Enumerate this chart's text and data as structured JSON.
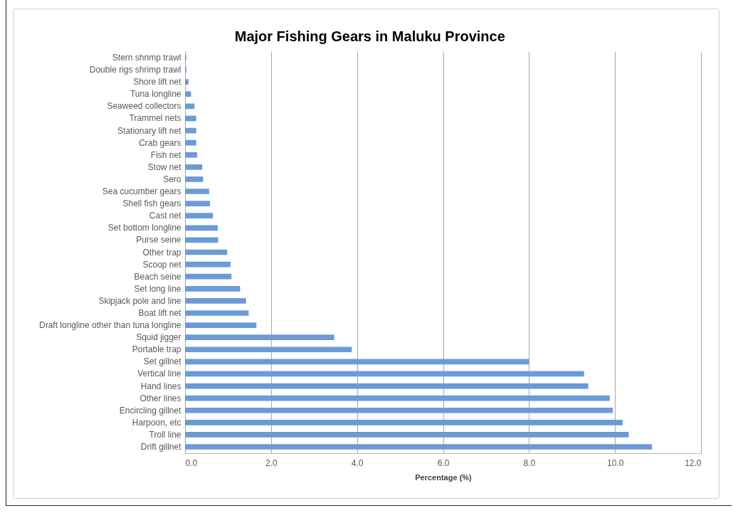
{
  "chart_data": {
    "type": "bar",
    "orientation": "horizontal",
    "title": "Major Fishing Gears in Maluku Province",
    "xlabel": "Percentage (%)",
    "categories": [
      "Stern shrimp trawl",
      "Double rigs shrimp trawl",
      "Shore lift net",
      "Tuna longline",
      "Seaweed collectors",
      "Trammel nets",
      "Stationary lift net",
      "Crab gears",
      "Fish net",
      "Stow net",
      "Sero",
      "Sea cucumber gears",
      "Shell fish gears",
      "Cast net",
      "Set bottom longline",
      "Purse seine",
      "Other trap",
      "Scoop net",
      "Beach seine",
      "Set long line",
      "Skipjack pole and line",
      "Boat lift net",
      "Draft longline other than tuna longline",
      "Squid jigger",
      "Portable trap",
      "Set gillnet",
      "Vertical line",
      "Hand lines",
      "Other lines",
      "Encircling gillnet",
      "Harpoon, etc",
      "Troll line",
      "Drift gillnet"
    ],
    "values": [
      0.03,
      0.03,
      0.08,
      0.14,
      0.22,
      0.26,
      0.26,
      0.26,
      0.28,
      0.4,
      0.42,
      0.56,
      0.58,
      0.65,
      0.76,
      0.77,
      0.98,
      1.06,
      1.08,
      1.28,
      1.42,
      1.48,
      1.66,
      3.47,
      3.88,
      8.0,
      9.28,
      9.38,
      9.88,
      9.95,
      10.18,
      10.32,
      10.86
    ],
    "color": "#6b9bd6",
    "xlim": [
      0,
      12
    ],
    "xticks": [
      {
        "value": 0,
        "label": "0.0"
      },
      {
        "value": 2,
        "label": "2.0"
      },
      {
        "value": 4,
        "label": "4.0"
      },
      {
        "value": 6,
        "label": "6.0"
      },
      {
        "value": 8,
        "label": "8.0"
      },
      {
        "value": 10,
        "label": "10.0"
      },
      {
        "value": 12,
        "label": "12.0"
      }
    ],
    "grid": "x"
  }
}
